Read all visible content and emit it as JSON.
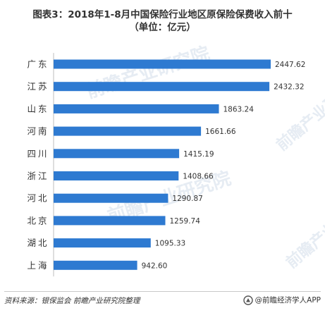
{
  "title": {
    "line1": "图表3：2018年1-8月中国保险行业地区原保险保费收入前十",
    "line2": "（单位：亿元）"
  },
  "chart_data": {
    "type": "bar",
    "orientation": "horizontal",
    "categories": [
      "广东",
      "江苏",
      "山东",
      "河南",
      "四川",
      "浙江",
      "河北",
      "北京",
      "湖北",
      "上海"
    ],
    "values": [
      2447.62,
      2432.32,
      1863.24,
      1661.66,
      1415.19,
      1408.66,
      1290.87,
      1259.74,
      1095.33,
      942.6
    ],
    "value_labels": [
      "2447.62",
      "2432.32",
      "1863.24",
      "1661.66",
      "1415.19",
      "1408.66",
      "1290.87",
      "1259.74",
      "1095.33",
      "942.60"
    ],
    "xlim": [
      0,
      2447.62
    ],
    "bar_color": "#2e7ad1",
    "grid": false,
    "legend": "none"
  },
  "watermark": {
    "text": "前瞻产业研究院",
    "color": "#c9d6e6"
  },
  "footer": {
    "source": "资料来源：银保监会 前瞻产业研究院整理",
    "brand": "@前瞻经济学人APP",
    "logo_icon": "qianzhan-logo-icon"
  }
}
